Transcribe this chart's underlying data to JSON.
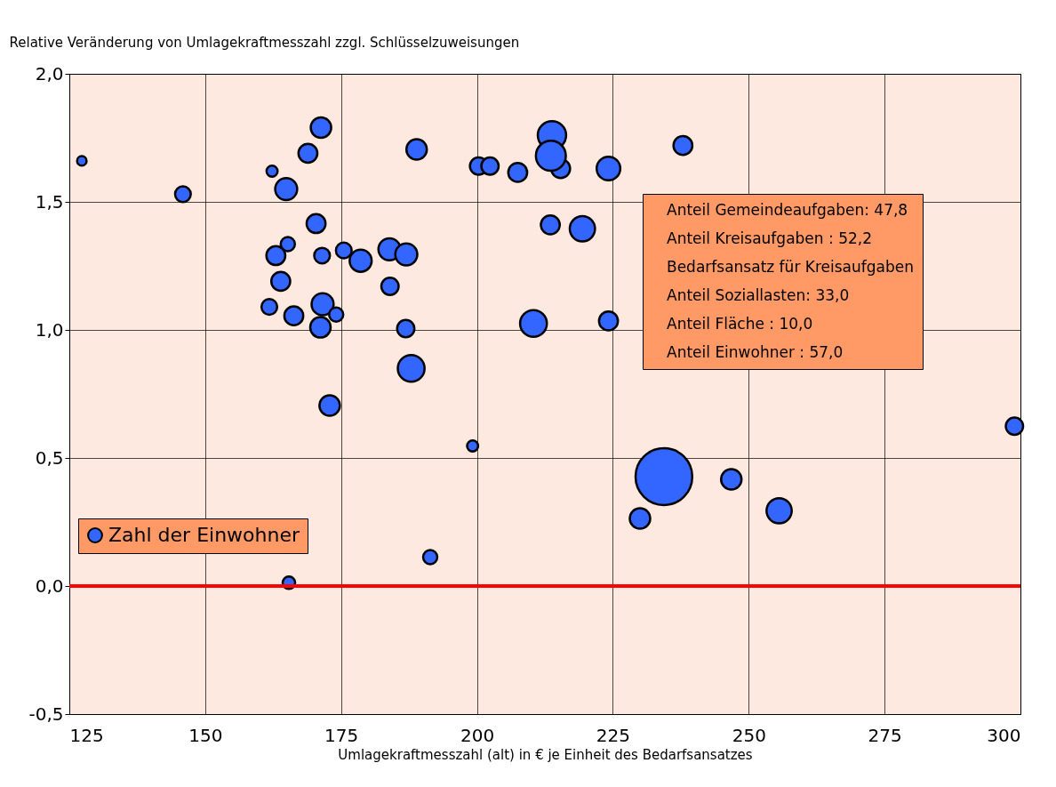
{
  "chart_data": {
    "type": "bubble",
    "xlabel": "Umlagekraftmesszahl (alt) in € je Einheit des Bedarfsansatzes",
    "ylabel": "Relative Veränderung von Umlagekraftmesszahl zzgl. Schlüsselzuweisungen",
    "x": [
      127.3,
      145.9,
      162.3,
      164.9,
      168.9,
      171.3,
      170.4,
      165.2,
      163.0,
      171.5,
      175.5,
      178.6,
      183.9,
      187.0,
      163.9,
      184.0,
      161.8,
      166.3,
      171.6,
      174.1,
      171.2,
      186.9,
      187.9,
      172.9,
      188.9,
      200.3,
      202.4,
      207.5,
      213.8,
      215.4,
      213.6,
      224.2,
      237.9,
      213.5,
      219.4,
      210.4,
      224.2,
      199.2,
      234.4,
      246.8,
      230.0,
      255.6,
      298.9,
      191.4,
      165.4
    ],
    "series": [
      {
        "name": "Zahl der Einwohner",
        "color": "#3366ff",
        "values": [
          1.66,
          1.53,
          1.62,
          1.55,
          1.69,
          1.79,
          1.415,
          1.335,
          1.29,
          1.29,
          1.31,
          1.27,
          1.315,
          1.295,
          1.19,
          1.17,
          1.09,
          1.055,
          1.1,
          1.06,
          1.01,
          1.005,
          0.85,
          0.705,
          1.705,
          1.64,
          1.64,
          1.615,
          1.76,
          1.63,
          1.68,
          1.63,
          1.72,
          1.41,
          1.395,
          1.025,
          1.035,
          0.547,
          0.427,
          0.417,
          0.264,
          0.294,
          0.624,
          0.113,
          0.013
        ],
        "sizes": [
          0.028,
          0.077,
          0.038,
          0.151,
          0.111,
          0.13,
          0.111,
          0.0625,
          0.111,
          0.077,
          0.077,
          0.151,
          0.151,
          0.151,
          0.111,
          0.093,
          0.077,
          0.111,
          0.151,
          0.0625,
          0.13,
          0.093,
          0.223,
          0.13,
          0.13,
          0.093,
          0.093,
          0.111,
          0.25,
          0.111,
          0.279,
          0.174,
          0.111,
          0.111,
          0.198,
          0.223,
          0.111,
          0.038,
          1,
          0.13,
          0.13,
          0.198,
          0.093,
          0.0625,
          0.049
        ]
      }
    ],
    "xlim": [
      125,
      300
    ],
    "xticks": [
      125,
      150,
      175,
      200,
      225,
      250,
      275,
      300
    ],
    "ylim": [
      -0.5,
      2.0
    ],
    "yticks": [
      {
        "value": -0.5,
        "label": "-0,5"
      },
      {
        "value": 0,
        "label": "0,0"
      },
      {
        "value": 0.5,
        "label": "0,5"
      },
      {
        "value": 1.0,
        "label": "1,0"
      },
      {
        "value": 1.5,
        "label": "1,5"
      },
      {
        "value": 2.0,
        "label": "2,0"
      }
    ],
    "grid": true,
    "legend": "bottom left",
    "marker": "circle",
    "ref_lines": [
      {
        "axis": "y",
        "value": 0,
        "color": "#ff0000"
      }
    ],
    "annotations": [
      "Anteil Gemeindeaufgaben:  47,8",
      "Anteil Kreisaufgaben  :  52,2",
      "Bedarfsansatz für Kreisaufgaben",
      "Anteil Soziallasten:  33,0",
      "Anteil Fläche  :  10,0",
      "Anteil Einwohner  :  57,0"
    ]
  }
}
